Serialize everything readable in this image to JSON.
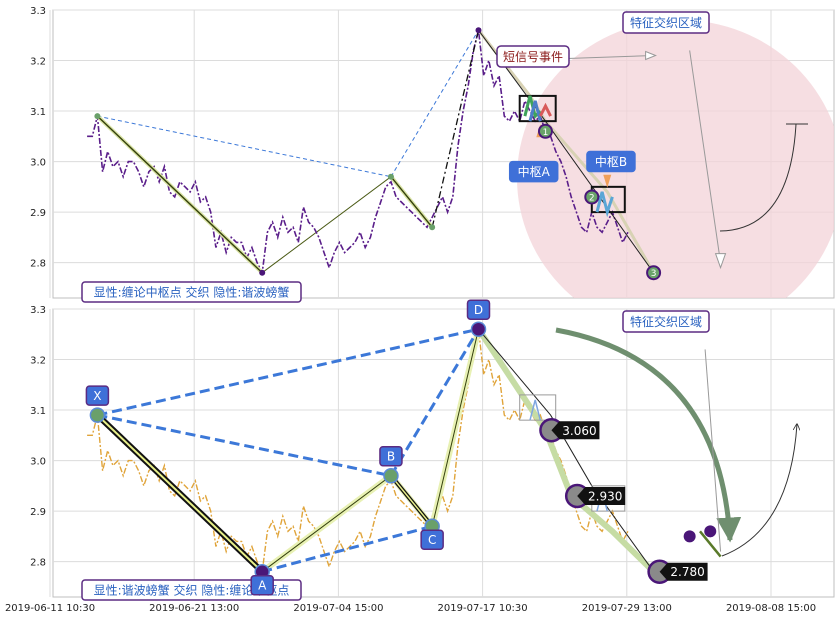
{
  "chart_data": [
    {
      "type": "line",
      "panel": "top",
      "ylim": [
        2.73,
        3.3
      ],
      "y_ticks": [
        "3.3",
        "3.2",
        "3.1",
        "3.0",
        "2.9",
        "2.8"
      ],
      "legend": {
        "text": "显性:缠论中枢点 交织 隐性:谐波螃蟹"
      },
      "region_label": "特征交织区域",
      "event_label": "短信号事件",
      "pivot_labels": [
        {
          "label": "中枢A",
          "x": 98,
          "y": 3.0
        },
        {
          "label": "中枢B",
          "x": 113,
          "y": 3.02
        }
      ],
      "markers": [
        {
          "label": "1",
          "x": 103,
          "y": 3.06
        },
        {
          "label": "2",
          "x": 112,
          "y": 2.93
        },
        {
          "label": "3",
          "x": 124,
          "y": 2.78
        }
      ],
      "harmonic_points": [
        {
          "x": 16,
          "y": 3.09
        },
        {
          "x": 48,
          "y": 2.78
        },
        {
          "x": 73,
          "y": 2.97
        },
        {
          "x": 81,
          "y": 2.87
        },
        {
          "x": 90,
          "y": 3.26
        }
      ],
      "chanlun_points": [
        {
          "x": 16,
          "y": 3.09
        },
        {
          "x": 48,
          "y": 2.78
        },
        {
          "x": 73,
          "y": 2.97
        },
        {
          "x": 81,
          "y": 2.87
        },
        {
          "x": 90,
          "y": 3.26
        },
        {
          "x": 100,
          "y": 3.13
        },
        {
          "x": 103,
          "y": 3.08
        },
        {
          "x": 115,
          "y": 2.94
        },
        {
          "x": 124,
          "y": 2.78
        }
      ],
      "price_series": [
        {
          "x": 14,
          "y": 3.05
        },
        {
          "x": 15,
          "y": 3.05
        },
        {
          "x": 16,
          "y": 3.09
        },
        {
          "x": 17,
          "y": 2.98
        },
        {
          "x": 18,
          "y": 3.02
        },
        {
          "x": 19,
          "y": 2.99
        },
        {
          "x": 20,
          "y": 3.0
        },
        {
          "x": 21,
          "y": 2.97
        },
        {
          "x": 22,
          "y": 3.0
        },
        {
          "x": 23,
          "y": 3.0
        },
        {
          "x": 24,
          "y": 2.98
        },
        {
          "x": 25,
          "y": 2.95
        },
        {
          "x": 26,
          "y": 2.98
        },
        {
          "x": 27,
          "y": 2.99
        },
        {
          "x": 28,
          "y": 2.96
        },
        {
          "x": 29,
          "y": 2.99
        },
        {
          "x": 30,
          "y": 2.94
        },
        {
          "x": 31,
          "y": 2.93
        },
        {
          "x": 32,
          "y": 2.96
        },
        {
          "x": 33,
          "y": 2.95
        },
        {
          "x": 34,
          "y": 2.94
        },
        {
          "x": 35,
          "y": 2.96
        },
        {
          "x": 36,
          "y": 2.92
        },
        {
          "x": 37,
          "y": 2.93
        },
        {
          "x": 38,
          "y": 2.9
        },
        {
          "x": 39,
          "y": 2.83
        },
        {
          "x": 40,
          "y": 2.86
        },
        {
          "x": 41,
          "y": 2.82
        },
        {
          "x": 42,
          "y": 2.85
        },
        {
          "x": 43,
          "y": 2.84
        },
        {
          "x": 44,
          "y": 2.84
        },
        {
          "x": 45,
          "y": 2.81
        },
        {
          "x": 46,
          "y": 2.83
        },
        {
          "x": 47,
          "y": 2.8
        },
        {
          "x": 48,
          "y": 2.78
        },
        {
          "x": 49,
          "y": 2.86
        },
        {
          "x": 50,
          "y": 2.88
        },
        {
          "x": 51,
          "y": 2.85
        },
        {
          "x": 52,
          "y": 2.89
        },
        {
          "x": 53,
          "y": 2.86
        },
        {
          "x": 54,
          "y": 2.87
        },
        {
          "x": 55,
          "y": 2.84
        },
        {
          "x": 56,
          "y": 2.91
        },
        {
          "x": 57,
          "y": 2.88
        },
        {
          "x": 58,
          "y": 2.87
        },
        {
          "x": 59,
          "y": 2.85
        },
        {
          "x": 60,
          "y": 2.82
        },
        {
          "x": 61,
          "y": 2.79
        },
        {
          "x": 62,
          "y": 2.82
        },
        {
          "x": 63,
          "y": 2.84
        },
        {
          "x": 64,
          "y": 2.82
        },
        {
          "x": 65,
          "y": 2.83
        },
        {
          "x": 66,
          "y": 2.84
        },
        {
          "x": 67,
          "y": 2.86
        },
        {
          "x": 68,
          "y": 2.83
        },
        {
          "x": 69,
          "y": 2.85
        },
        {
          "x": 70,
          "y": 2.89
        },
        {
          "x": 71,
          "y": 2.92
        },
        {
          "x": 72,
          "y": 2.95
        },
        {
          "x": 73,
          "y": 2.96
        },
        {
          "x": 74,
          "y": 2.93
        },
        {
          "x": 75,
          "y": 2.92
        },
        {
          "x": 76,
          "y": 2.91
        },
        {
          "x": 77,
          "y": 2.9
        },
        {
          "x": 78,
          "y": 2.89
        },
        {
          "x": 79,
          "y": 2.88
        },
        {
          "x": 80,
          "y": 2.87
        },
        {
          "x": 81,
          "y": 2.89
        },
        {
          "x": 82,
          "y": 2.91
        },
        {
          "x": 83,
          "y": 2.93
        },
        {
          "x": 84,
          "y": 2.9
        },
        {
          "x": 85,
          "y": 2.93
        },
        {
          "x": 86,
          "y": 3.03
        },
        {
          "x": 87,
          "y": 3.1
        },
        {
          "x": 88,
          "y": 3.15
        },
        {
          "x": 89,
          "y": 3.22
        },
        {
          "x": 90,
          "y": 3.26
        },
        {
          "x": 91,
          "y": 3.17
        },
        {
          "x": 92,
          "y": 3.2
        },
        {
          "x": 93,
          "y": 3.15
        },
        {
          "x": 94,
          "y": 3.17
        },
        {
          "x": 95,
          "y": 3.09
        },
        {
          "x": 96,
          "y": 3.08
        },
        {
          "x": 97,
          "y": 3.1
        },
        {
          "x": 98,
          "y": 3.08
        },
        {
          "x": 99,
          "y": 3.12
        },
        {
          "x": 100,
          "y": 3.1
        },
        {
          "x": 101,
          "y": 3.08
        },
        {
          "x": 102,
          "y": 3.09
        },
        {
          "x": 103,
          "y": 3.06
        },
        {
          "x": 104,
          "y": 3.05
        },
        {
          "x": 105,
          "y": 3.02
        },
        {
          "x": 106,
          "y": 3.0
        },
        {
          "x": 107,
          "y": 2.97
        },
        {
          "x": 108,
          "y": 2.93
        },
        {
          "x": 109,
          "y": 2.9
        },
        {
          "x": 110,
          "y": 2.87
        },
        {
          "x": 111,
          "y": 2.86
        },
        {
          "x": 112,
          "y": 2.9
        },
        {
          "x": 113,
          "y": 2.87
        },
        {
          "x": 114,
          "y": 2.86
        },
        {
          "x": 115,
          "y": 2.88
        },
        {
          "x": 116,
          "y": 2.9
        },
        {
          "x": 117,
          "y": 2.87
        },
        {
          "x": 118,
          "y": 2.84
        },
        {
          "x": 119,
          "y": 2.86
        }
      ]
    },
    {
      "type": "line",
      "panel": "bottom",
      "ylim": [
        2.73,
        3.3
      ],
      "y_ticks": [
        "3.3",
        "3.2",
        "3.1",
        "3.0",
        "2.9",
        "2.8"
      ],
      "x_tick_labels": [
        {
          "x": 0,
          "label": "2019-06-11 10:30"
        },
        {
          "x": 28,
          "label": "2019-06-21 13:00"
        },
        {
          "x": 56,
          "label": "2019-07-04 15:00"
        },
        {
          "x": 84,
          "label": "2019-07-17 10:30"
        },
        {
          "x": 112,
          "label": "2019-07-29 13:00"
        },
        {
          "x": 140,
          "label": "2019-08-08 15:00"
        }
      ],
      "legend": {
        "text": "显性:谐波螃蟹 交织 隐性:缠论中枢点"
      },
      "region_label": "特征交织区域",
      "harmonic_points": [
        {
          "label": "X",
          "x": 16,
          "y": 3.09
        },
        {
          "label": "A",
          "x": 48,
          "y": 2.78
        },
        {
          "label": "B",
          "x": 73,
          "y": 2.97
        },
        {
          "label": "C",
          "x": 81,
          "y": 2.87
        },
        {
          "label": "D",
          "x": 90,
          "y": 3.26
        }
      ],
      "price_callouts": [
        {
          "label": "3.060",
          "x": 103,
          "y": 3.06
        },
        {
          "label": "2.930",
          "x": 108,
          "y": 2.93
        },
        {
          "label": "2.780",
          "x": 124,
          "y": 2.78
        }
      ],
      "price_series_ref": "same as top panel"
    }
  ]
}
